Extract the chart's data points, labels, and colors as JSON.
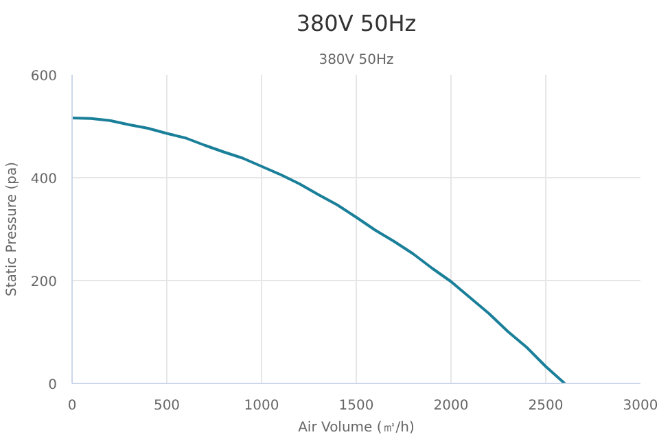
{
  "chart_data": {
    "type": "line",
    "title": "380V 50Hz",
    "subtitle": "380V 50Hz",
    "xlabel": "Air Volume (㎥/h)",
    "ylabel": "Static Pressure (pa)",
    "x": [
      0,
      100,
      200,
      300,
      400,
      500,
      600,
      700,
      800,
      900,
      1000,
      1100,
      1200,
      1300,
      1400,
      1500,
      1600,
      1700,
      1800,
      1900,
      2000,
      2100,
      2200,
      2300,
      2400,
      2500,
      2600
    ],
    "series": [
      {
        "color": "#1a7f99",
        "values": [
          516,
          515,
          511,
          503,
          496,
          486,
          477,
          463,
          450,
          438,
          422,
          406,
          388,
          367,
          347,
          323,
          298,
          276,
          252,
          224,
          198,
          167,
          136,
          101,
          70,
          33,
          0
        ]
      }
    ],
    "xlim": [
      0,
      3000
    ],
    "xticks": [
      0,
      500,
      1000,
      1500,
      2000,
      2500,
      3000
    ],
    "ylim": [
      0,
      600
    ],
    "yticks": [
      0,
      200,
      400,
      600
    ],
    "grid": true,
    "marker": "none"
  }
}
